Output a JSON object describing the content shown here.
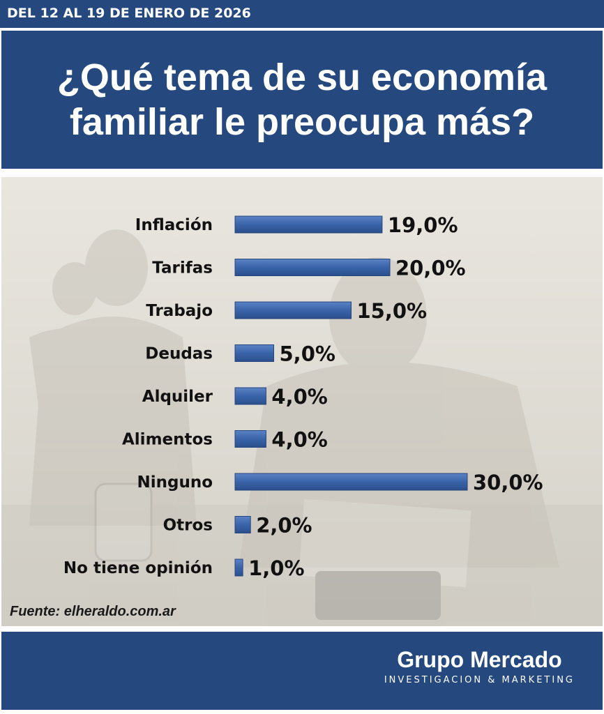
{
  "header": {
    "date_range": "DEL 12 AL 19 DE ENERO DE 2026",
    "title_line1": "¿Qué tema de su economía",
    "title_line2": "familiar le preocupa más?"
  },
  "chart_data": {
    "type": "bar",
    "orientation": "horizontal",
    "categories": [
      "Inflación",
      "Tarifas",
      "Trabajo",
      "Deudas",
      "Alquiler",
      "Alimentos",
      "Ninguno",
      "Otros",
      "No tiene opinión"
    ],
    "values": [
      19.0,
      20.0,
      15.0,
      5.0,
      4.0,
      4.0,
      30.0,
      2.0,
      1.0
    ],
    "labels": [
      "19,0%",
      "20,0%",
      "15,0%",
      "5,0%",
      "4,0%",
      "4,0%",
      "30,0%",
      "2,0%",
      "1,0%"
    ],
    "xlim": [
      0,
      30
    ],
    "bar_color": "#3a64a8",
    "grid": false,
    "legend": "none"
  },
  "source": "Fuente: elheraldo.com.ar",
  "footer": {
    "brand": "Grupo Mercado",
    "tagline": "INVESTIGACION & MARKETING"
  },
  "colors": {
    "primary_blue": "#25487f",
    "bar_blue": "#3a64a8"
  }
}
